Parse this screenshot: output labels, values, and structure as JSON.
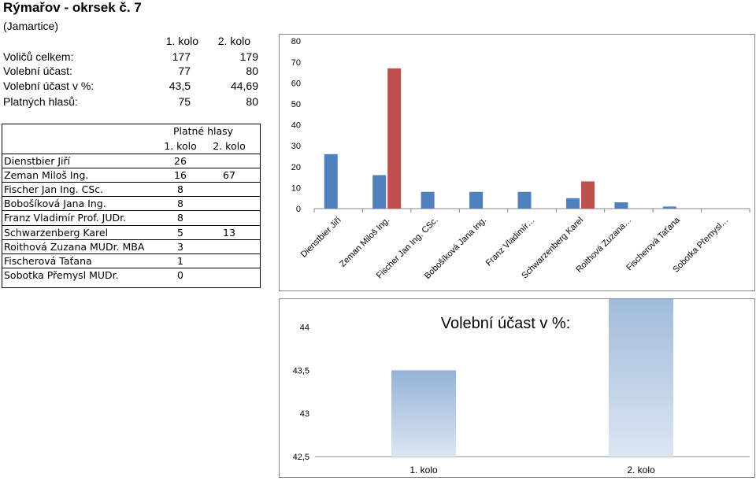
{
  "header": {
    "title": "Rýmařov - okrsek č. 7",
    "subtitle": "(Jamartice)"
  },
  "stats": {
    "col1": "1. kolo",
    "col2": "2. kolo",
    "rows": [
      {
        "label": "Voličů celkem:",
        "v1": "177",
        "v2": "179"
      },
      {
        "label": "Volební účast:",
        "v1": "77",
        "v2": "80"
      },
      {
        "label": "Volební účast v %:",
        "v1": "43,5",
        "v2": "44,69"
      },
      {
        "label": "Platných hlasů:",
        "v1": "75",
        "v2": "80"
      }
    ]
  },
  "candidates": {
    "heading": "Platné hlasy",
    "col1": "1. kolo",
    "col2": "2. kolo",
    "rows": [
      {
        "name": "Dienstbier Jiří",
        "k1": "26",
        "k2": ""
      },
      {
        "name": "Zeman Miloš Ing.",
        "k1": "16",
        "k2": "67"
      },
      {
        "name": "Fischer Jan Ing. CSc.",
        "k1": "8",
        "k2": ""
      },
      {
        "name": "Bobošíková Jana Ing.",
        "k1": "8",
        "k2": ""
      },
      {
        "name": "Franz Vladimír Prof. JUDr.",
        "k1": "8",
        "k2": ""
      },
      {
        "name": "Schwarzenberg Karel",
        "k1": "5",
        "k2": "13"
      },
      {
        "name": "Roithová Zuzana MUDr. MBA",
        "k1": "3",
        "k2": ""
      },
      {
        "name": "Fischerová Taťana",
        "k1": "1",
        "k2": ""
      },
      {
        "name": "Sobotka Přemysl MUDr.",
        "k1": "0",
        "k2": ""
      }
    ]
  },
  "chart_data": [
    {
      "type": "bar",
      "categories": [
        "Dienstbier Jiří",
        "Zeman Miloš Ing.",
        "Fischer Jan Ing. CSc.",
        "Bobošíková Jana Ing.",
        "Franz Vladimír…",
        "Schwarzenberg Karel",
        "Roithová Zuzana…",
        "Fischerová Taťana",
        "Sobotka Přemysl…"
      ],
      "series": [
        {
          "values": [
            26,
            16,
            8,
            8,
            8,
            5,
            3,
            1,
            0
          ],
          "color": "#4F81BD"
        },
        {
          "values": [
            null,
            67,
            null,
            null,
            null,
            13,
            null,
            null,
            null
          ],
          "color": "#C0504D"
        }
      ],
      "ylim": [
        0,
        80
      ],
      "yticks": [
        "0",
        "10",
        "20",
        "30",
        "40",
        "50",
        "60",
        "70",
        "80"
      ],
      "grid": false,
      "legend": "none"
    },
    {
      "type": "bar",
      "title": "Volební účast v %:",
      "categories": [
        "1. kolo",
        "2. kolo"
      ],
      "values": [
        43.5,
        44.69
      ],
      "ylim": [
        42.5,
        45
      ],
      "yticks": [
        "42,5",
        "43",
        "43,5",
        "44",
        "44,5",
        "45"
      ],
      "color": "#95B3D7",
      "grid": false,
      "legend": "none"
    }
  ]
}
